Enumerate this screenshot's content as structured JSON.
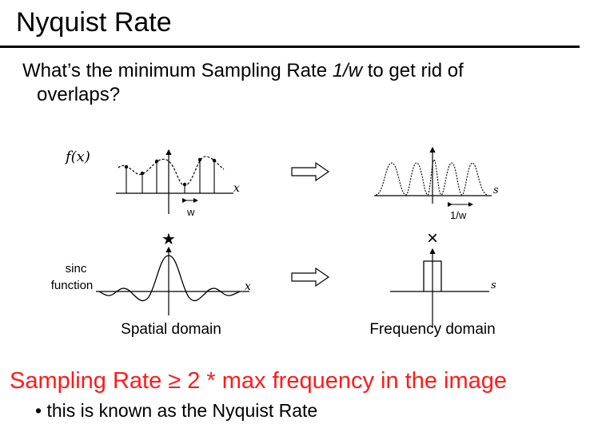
{
  "slide": {
    "title": "Nyquist Rate",
    "question_pre": "What’s the minimum Sampling Rate ",
    "question_var": "1/w",
    "question_mid": " to get rid of",
    "question_end": "overlaps?",
    "rate_statement": "Sampling Rate ≥ 2 * max frequency in the image",
    "bullet": "• this is known as the Nyquist Rate"
  },
  "figure": {
    "fx_label": "f(x)",
    "x_label": "x",
    "s_label": "s",
    "w_label": "w",
    "inv_w_label": "1/w",
    "convolve_symbol": "★",
    "multiply_symbol": "×",
    "sinc_label_line1": "sinc",
    "sinc_label_line2": "function",
    "spatial_caption": "Spatial domain",
    "frequency_caption": "Frequency domain"
  }
}
